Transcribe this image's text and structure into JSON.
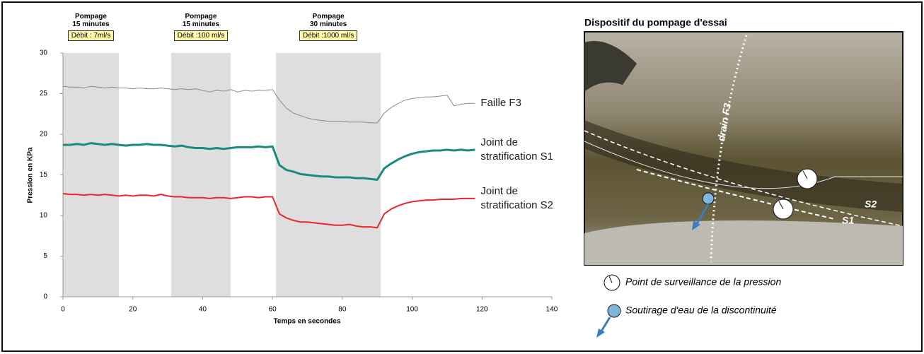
{
  "chart_data": {
    "type": "line",
    "x_label": "Temps en secondes",
    "y_label": "Pression en KPa",
    "xlim": [
      0,
      140
    ],
    "xticks": [
      0,
      20,
      40,
      60,
      80,
      100,
      120,
      140
    ],
    "ylim": [
      0,
      30
    ],
    "yticks": [
      0,
      5,
      10,
      15,
      20,
      25,
      30
    ],
    "periods": [
      {
        "start": 0,
        "end": 16,
        "title": "Pompage",
        "duration": "15 minutes",
        "rate": "Débit : 7ml/s"
      },
      {
        "start": 31,
        "end": 48,
        "title": "Pompage",
        "duration": "15 minutes",
        "rate": "Débit :100 ml/s"
      },
      {
        "start": 61,
        "end": 91,
        "title": "Pompage",
        "duration": "30 minutes",
        "rate": "Débit :1000 ml/s"
      }
    ],
    "period_color": "#dedede",
    "x": [
      0,
      2,
      4,
      6,
      8,
      10,
      12,
      14,
      16,
      18,
      20,
      22,
      24,
      26,
      28,
      30,
      32,
      34,
      36,
      38,
      40,
      42,
      44,
      46,
      48,
      50,
      52,
      54,
      56,
      58,
      60,
      62,
      64,
      66,
      68,
      70,
      72,
      74,
      76,
      78,
      80,
      82,
      84,
      86,
      88,
      90,
      92,
      94,
      96,
      98,
      100,
      102,
      104,
      106,
      108,
      110,
      112,
      114,
      116,
      118
    ],
    "series": [
      {
        "name": "Faille F3",
        "color": "#8a8a8a",
        "width": 1,
        "values": [
          25.9,
          25.8,
          25.8,
          25.7,
          25.9,
          25.8,
          25.7,
          25.8,
          25.7,
          25.7,
          25.6,
          25.7,
          25.6,
          25.6,
          25.7,
          25.6,
          25.5,
          25.6,
          25.5,
          25.6,
          25.4,
          25.2,
          25.4,
          25.3,
          25.5,
          25.2,
          25.4,
          25.3,
          25.4,
          25.4,
          25.5,
          24.2,
          23.2,
          22.6,
          22.3,
          22.0,
          21.8,
          21.7,
          21.6,
          21.6,
          21.6,
          21.5,
          21.5,
          21.5,
          21.4,
          21.4,
          22.6,
          23.3,
          23.8,
          24.2,
          24.4,
          24.5,
          24.6,
          24.6,
          24.7,
          24.8,
          23.5,
          23.7,
          23.8,
          23.8
        ]
      },
      {
        "name": "Joint de stratification S1",
        "color": "#1a8a7e",
        "width": 3,
        "values": [
          18.7,
          18.7,
          18.8,
          18.7,
          18.9,
          18.8,
          18.7,
          18.8,
          18.7,
          18.6,
          18.7,
          18.7,
          18.8,
          18.7,
          18.7,
          18.6,
          18.5,
          18.6,
          18.4,
          18.3,
          18.3,
          18.2,
          18.3,
          18.2,
          18.3,
          18.4,
          18.4,
          18.4,
          18.5,
          18.4,
          18.5,
          16.2,
          15.6,
          15.4,
          15.1,
          15.0,
          14.9,
          14.8,
          14.8,
          14.7,
          14.7,
          14.7,
          14.6,
          14.6,
          14.5,
          14.4,
          15.8,
          16.4,
          16.9,
          17.3,
          17.6,
          17.8,
          17.9,
          18.0,
          18.0,
          18.1,
          18.0,
          18.1,
          18.0,
          18.1
        ]
      },
      {
        "name": "Joint de stratification S2",
        "color": "#e8282d",
        "width": 2,
        "values": [
          12.7,
          12.6,
          12.6,
          12.5,
          12.6,
          12.5,
          12.6,
          12.5,
          12.4,
          12.5,
          12.4,
          12.5,
          12.5,
          12.4,
          12.6,
          12.4,
          12.3,
          12.3,
          12.2,
          12.2,
          12.2,
          12.1,
          12.2,
          12.2,
          12.1,
          12.2,
          12.3,
          12.3,
          12.2,
          12.3,
          12.3,
          10.2,
          9.7,
          9.4,
          9.2,
          9.2,
          9.1,
          9.0,
          8.9,
          8.8,
          8.8,
          8.9,
          8.7,
          8.6,
          8.6,
          8.5,
          10.2,
          10.8,
          11.2,
          11.5,
          11.7,
          11.8,
          11.9,
          11.9,
          12.0,
          12.0,
          12.0,
          12.1,
          12.1,
          12.1
        ]
      }
    ]
  },
  "photo_panel": {
    "title": "Dispositif du pompage d'essai",
    "labels": {
      "drain": "drain F3",
      "s1": "S1",
      "s2": "S2"
    },
    "legend": [
      "Point de surveillance de la pression",
      "Soutirage d'eau de la discontinuité"
    ]
  }
}
